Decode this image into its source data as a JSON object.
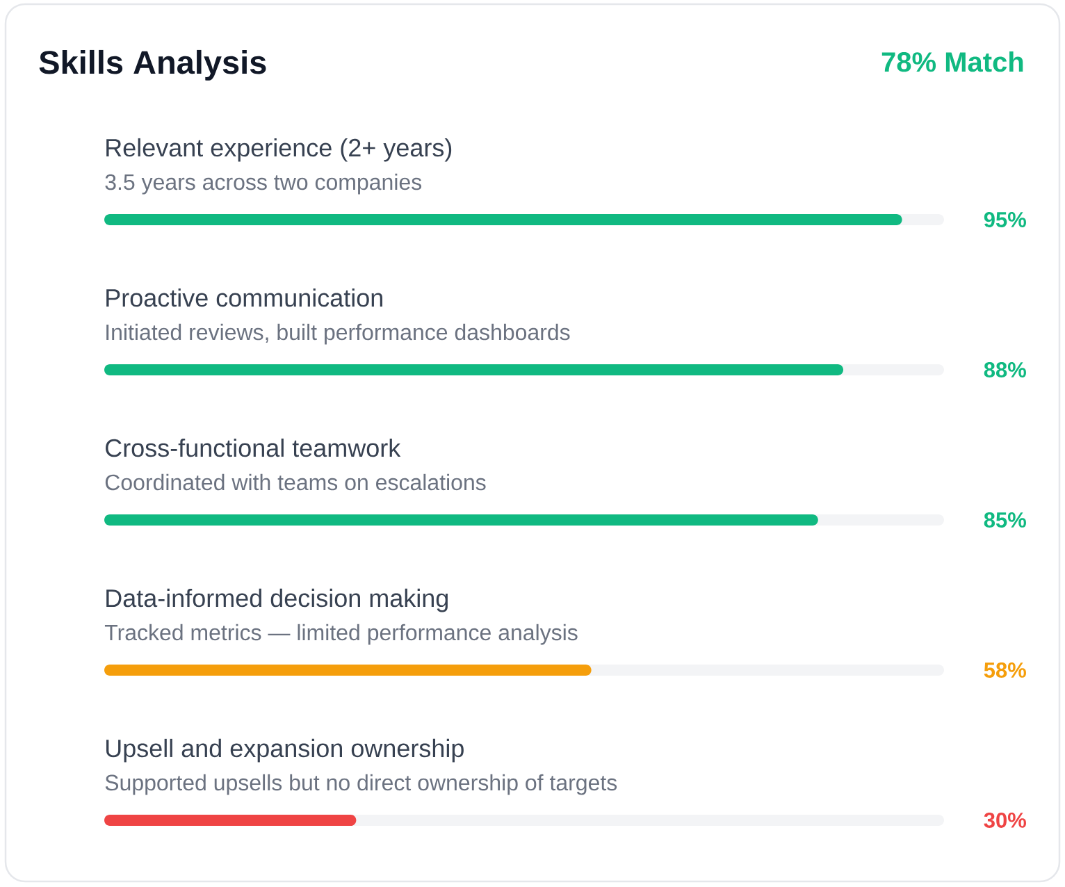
{
  "chart_data": {
    "type": "bar",
    "orientation": "horizontal",
    "title": "Skills Analysis",
    "subtitle": "78% Match",
    "categories": [
      "Relevant experience (2+ years)",
      "Proactive communication",
      "Cross-functional teamwork",
      "Data-informed decision making",
      "Upsell and expansion ownership"
    ],
    "values": [
      95,
      88,
      85,
      58,
      30
    ],
    "colors": [
      "#10b981",
      "#10b981",
      "#10b981",
      "#f59e0b",
      "#ef4444"
    ],
    "value_labels": [
      "95%",
      "88%",
      "85%",
      "58%",
      "30%"
    ],
    "xlim": [
      0,
      100
    ],
    "tick_labels": "y",
    "annotations": [
      "3.5 years across two companies",
      "Initiated reviews, built performance dashboards",
      "Coordinated with teams on escalations",
      "Tracked metrics — limited performance analysis",
      "Supported upsells but no direct ownership of targets"
    ]
  }
}
